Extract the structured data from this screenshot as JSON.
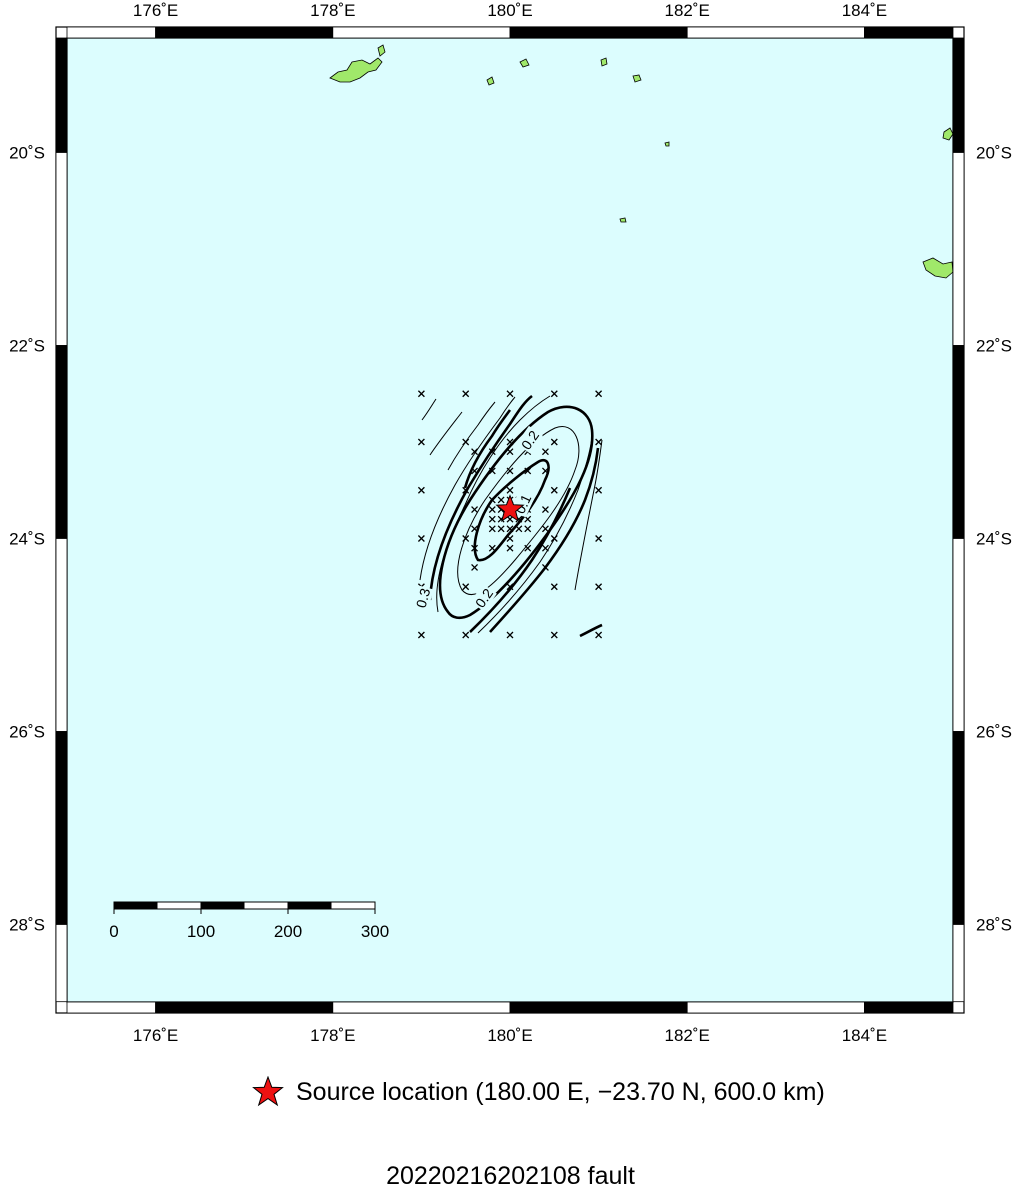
{
  "map": {
    "lon_range": [
      174.9,
      185.1
    ],
    "lat_range": [
      -28.8,
      -18.8
    ],
    "projection": "mercator",
    "ocean_color": "#dcfdfe",
    "land_color": "#a0e86a",
    "lon_ticks": [
      {
        "value": 176,
        "label": "176˚E"
      },
      {
        "value": 178,
        "label": "178˚E"
      },
      {
        "value": 180,
        "label": "180˚E"
      },
      {
        "value": 182,
        "label": "182˚E"
      },
      {
        "value": 184,
        "label": "184˚E"
      }
    ],
    "lat_ticks": [
      {
        "value": -20,
        "label": "20˚S"
      },
      {
        "value": -22,
        "label": "22˚S"
      },
      {
        "value": -24,
        "label": "24˚S"
      },
      {
        "value": -26,
        "label": "26˚S"
      },
      {
        "value": -28,
        "label": "28˚S"
      }
    ]
  },
  "scale_bar": {
    "labels": [
      "0",
      "100",
      "200",
      "300"
    ],
    "unit_km_max": 300
  },
  "contours": {
    "labels": [
      "0.1",
      "0.2",
      "0.2",
      "0.3"
    ],
    "grid_lon": [
      179.0,
      181.0
    ],
    "grid_lat": [
      -25.0,
      -22.5
    ]
  },
  "source": {
    "lon": 180.0,
    "lat": -23.7,
    "depth_km": 600.0,
    "star_color": "#ee1111"
  },
  "legend": {
    "icon": "star-icon",
    "text": "Source location (180.00 E, −23.70 N, 600.0 km)"
  },
  "title": "20220216202108 fault"
}
